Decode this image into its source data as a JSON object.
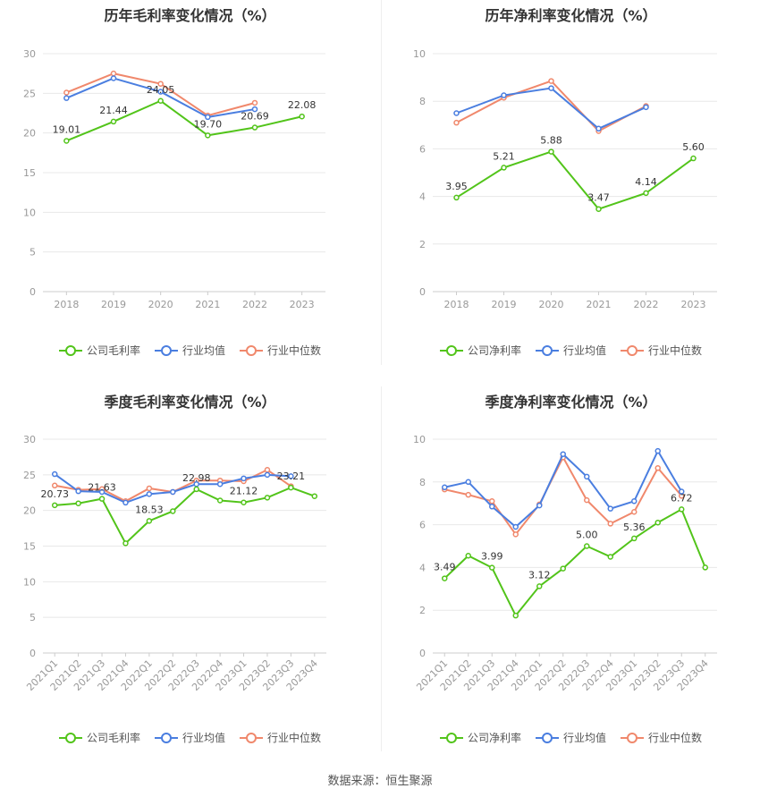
{
  "colors": {
    "company": "#52c41a",
    "industry_avg": "#4a7ee0",
    "industry_median": "#f0886c",
    "grid": "#e8e8e8",
    "axis": "#999999"
  },
  "legend_gross": [
    "公司毛利率",
    "行业均值",
    "行业中位数"
  ],
  "legend_net": [
    "公司净利率",
    "行业均值",
    "行业中位数"
  ],
  "source": "数据来源：恒生聚源",
  "chart_data": [
    {
      "id": "annual-gross",
      "type": "line",
      "title": "历年毛利率变化情况（%）",
      "categories": [
        "2018",
        "2019",
        "2020",
        "2021",
        "2022",
        "2023"
      ],
      "ylim": [
        0,
        30
      ],
      "yticks": [
        0,
        5,
        10,
        15,
        20,
        25,
        30
      ],
      "grid": true,
      "legend_position": "bottom",
      "series": [
        {
          "name": "公司毛利率",
          "values": [
            19.01,
            21.44,
            24.05,
            19.7,
            20.69,
            22.08
          ],
          "labels": [
            "19.01",
            "21.44",
            "24.05",
            "19.70",
            "20.69",
            "22.08"
          ]
        },
        {
          "name": "行业均值",
          "values": [
            24.4,
            26.9,
            25.2,
            22.0,
            23.0,
            null
          ]
        },
        {
          "name": "行业中位数",
          "values": [
            25.1,
            27.5,
            26.2,
            22.2,
            23.8,
            null
          ]
        }
      ]
    },
    {
      "id": "annual-net",
      "type": "line",
      "title": "历年净利率变化情况（%）",
      "categories": [
        "2018",
        "2019",
        "2020",
        "2021",
        "2022",
        "2023"
      ],
      "ylim": [
        0,
        10
      ],
      "yticks": [
        0,
        2,
        4,
        6,
        8,
        10
      ],
      "grid": true,
      "legend_position": "bottom",
      "series": [
        {
          "name": "公司净利率",
          "values": [
            3.95,
            5.21,
            5.88,
            3.47,
            4.14,
            5.6
          ],
          "labels": [
            "3.95",
            "5.21",
            "5.88",
            "3.47",
            "4.14",
            "5.60"
          ]
        },
        {
          "name": "行业均值",
          "values": [
            7.5,
            8.25,
            8.55,
            6.85,
            7.75,
            null
          ]
        },
        {
          "name": "行业中位数",
          "values": [
            7.1,
            8.15,
            8.85,
            6.75,
            7.8,
            null
          ]
        }
      ]
    },
    {
      "id": "quarterly-gross",
      "type": "line",
      "title": "季度毛利率变化情况（%）",
      "categories": [
        "2021Q1",
        "2021Q2",
        "2021Q3",
        "2021Q4",
        "2022Q1",
        "2022Q2",
        "2022Q3",
        "2022Q4",
        "2023Q1",
        "2023Q2",
        "2023Q3",
        "2023Q4"
      ],
      "ylim": [
        0,
        30
      ],
      "yticks": [
        0,
        5,
        10,
        15,
        20,
        25,
        30
      ],
      "grid": true,
      "legend_position": "bottom",
      "series": [
        {
          "name": "公司毛利率",
          "values": [
            20.73,
            21.0,
            21.63,
            15.4,
            18.53,
            19.9,
            22.98,
            21.4,
            21.12,
            21.8,
            23.21,
            22.0
          ],
          "labels": [
            "20.73",
            null,
            "21.63",
            null,
            "18.53",
            null,
            "22.98",
            null,
            "21.12",
            null,
            "23.21",
            null
          ]
        },
        {
          "name": "行业均值",
          "values": [
            25.1,
            22.7,
            22.6,
            21.1,
            22.3,
            22.6,
            23.7,
            23.7,
            24.5,
            25.0,
            24.8,
            null
          ]
        },
        {
          "name": "行业中位数",
          "values": [
            23.5,
            22.9,
            23.0,
            21.3,
            23.1,
            22.6,
            24.2,
            24.2,
            24.1,
            25.7,
            23.4,
            null
          ]
        }
      ]
    },
    {
      "id": "quarterly-net",
      "type": "line",
      "title": "季度净利率变化情况（%）",
      "categories": [
        "2021Q1",
        "2021Q2",
        "2021Q3",
        "2021Q4",
        "2022Q1",
        "2022Q2",
        "2022Q3",
        "2022Q4",
        "2023Q1",
        "2023Q2",
        "2023Q3",
        "2023Q4"
      ],
      "ylim": [
        0,
        10
      ],
      "yticks": [
        0,
        2,
        4,
        6,
        8,
        10
      ],
      "grid": true,
      "legend_position": "bottom",
      "series": [
        {
          "name": "公司净利率",
          "values": [
            3.49,
            4.55,
            3.99,
            1.75,
            3.12,
            3.95,
            5.0,
            4.5,
            5.36,
            6.1,
            6.72,
            4.0
          ],
          "labels": [
            "3.49",
            null,
            "3.99",
            null,
            "3.12",
            null,
            "5.00",
            null,
            "5.36",
            null,
            "6.72",
            null
          ]
        },
        {
          "name": "行业均值",
          "values": [
            7.75,
            8.0,
            6.85,
            5.9,
            6.9,
            9.3,
            8.25,
            6.75,
            7.1,
            9.45,
            7.55,
            null
          ]
        },
        {
          "name": "行业中位数",
          "values": [
            7.65,
            7.4,
            7.1,
            5.55,
            6.95,
            9.15,
            7.15,
            6.05,
            6.6,
            8.65,
            7.35,
            null
          ]
        }
      ]
    }
  ]
}
